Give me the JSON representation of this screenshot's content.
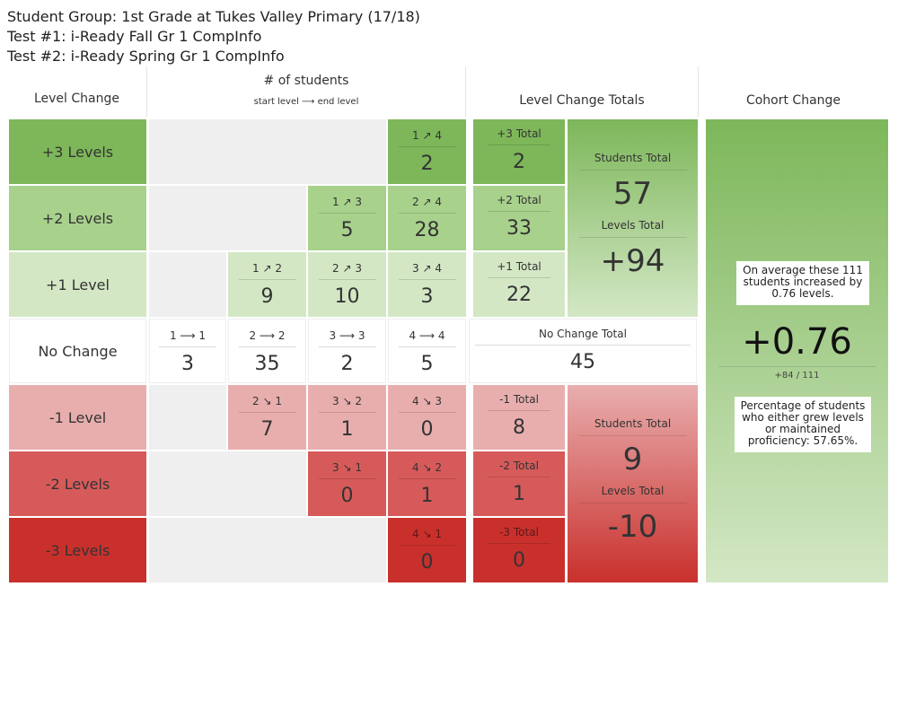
{
  "header": {
    "student_group": "Student Group: 1st Grade at Tukes Valley Primary (17/18)",
    "test1": "Test #1: i-Ready Fall Gr 1 CompInfo",
    "test2": "Test #2: i-Ready Spring Gr 1 CompInfo"
  },
  "columns": {
    "level_change": "Level Change",
    "students": "# of students",
    "students_sub": "start level ⟶ end level",
    "totals": "Level Change Totals",
    "cohort": "Cohort Change"
  },
  "rows": {
    "plus3": {
      "label": "+3 Levels",
      "c4": {
        "label": "1 ↗ 4",
        "value": "2"
      },
      "total": {
        "label": "+3 Total",
        "value": "2"
      }
    },
    "plus2": {
      "label": "+2 Levels",
      "c3": {
        "label": "1 ↗ 3",
        "value": "5"
      },
      "c4": {
        "label": "2 ↗ 4",
        "value": "28"
      },
      "total": {
        "label": "+2 Total",
        "value": "33"
      }
    },
    "plus1": {
      "label": "+1 Level",
      "c2": {
        "label": "1 ↗ 2",
        "value": "9"
      },
      "c3": {
        "label": "2 ↗ 3",
        "value": "10"
      },
      "c4": {
        "label": "3 ↗ 4",
        "value": "3"
      },
      "total": {
        "label": "+1 Total",
        "value": "22"
      }
    },
    "nochange": {
      "label": "No Change",
      "c1": {
        "label": "1 ⟶ 1",
        "value": "3"
      },
      "c2": {
        "label": "2 ⟶ 2",
        "value": "35"
      },
      "c3": {
        "label": "3 ⟶ 3",
        "value": "2"
      },
      "c4": {
        "label": "4 ⟶ 4",
        "value": "5"
      },
      "total": {
        "label": "No Change Total",
        "value": "45"
      }
    },
    "minus1": {
      "label": "-1 Level",
      "c2": {
        "label": "2 ↘ 1",
        "value": "7"
      },
      "c3": {
        "label": "3 ↘ 2",
        "value": "1"
      },
      "c4": {
        "label": "4 ↘ 3",
        "value": "0"
      },
      "total": {
        "label": "-1 Total",
        "value": "8"
      }
    },
    "minus2": {
      "label": "-2 Levels",
      "c3": {
        "label": "3 ↘ 1",
        "value": "0"
      },
      "c4": {
        "label": "4 ↘ 2",
        "value": "1"
      },
      "total": {
        "label": "-2 Total",
        "value": "1"
      }
    },
    "minus3": {
      "label": "-3 Levels",
      "c4": {
        "label": "4 ↘ 1",
        "value": "0"
      },
      "total": {
        "label": "-3 Total",
        "value": "0"
      }
    }
  },
  "up_summary": {
    "students_label": "Students Total",
    "students_value": "57",
    "levels_label": "Levels Total",
    "levels_value": "+94"
  },
  "down_summary": {
    "students_label": "Students Total",
    "students_value": "9",
    "levels_label": "Levels Total",
    "levels_value": "-10"
  },
  "cohort": {
    "note1": "On average these 111 students increased by 0.76 levels.",
    "value": "+0.76",
    "fraction": "+84 / 111",
    "note2": "Percentage of students who either grew levels or maintained proficiency: 57.65%."
  },
  "colors": {
    "plus3": "#7db75a",
    "plus2": "#a8d18c",
    "plus1": "#d3e7c5",
    "nochange": "#ffffff",
    "minus1": "#e8aeae",
    "minus2": "#d75a5a",
    "minus3": "#c9302c",
    "empty": "#efefef"
  }
}
